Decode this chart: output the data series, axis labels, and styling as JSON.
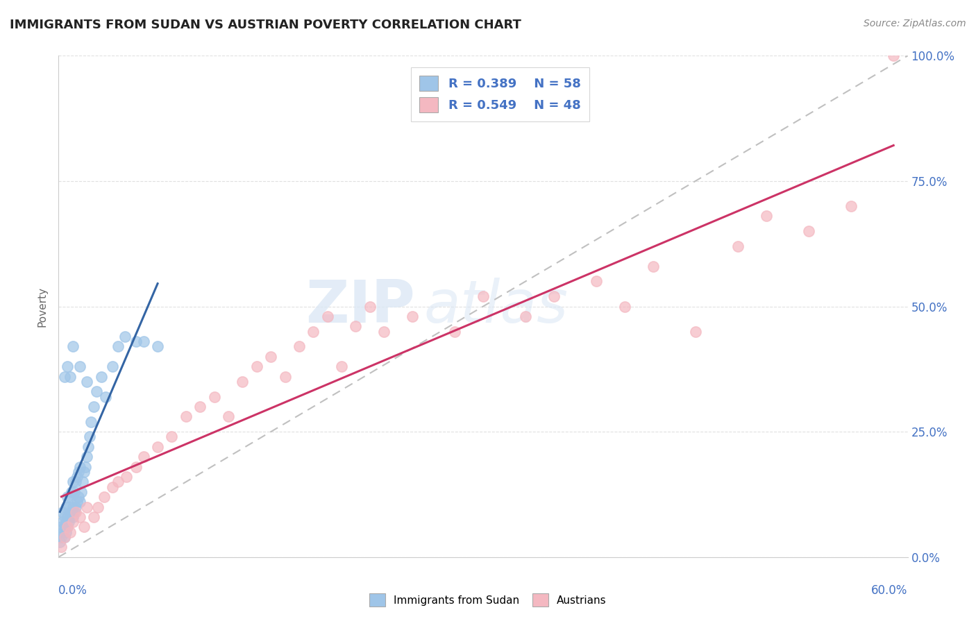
{
  "title": "IMMIGRANTS FROM SUDAN VS AUSTRIAN POVERTY CORRELATION CHART",
  "xlabel_bottom_left": "0.0%",
  "xlabel_bottom_right": "60.0%",
  "ylabel": "Poverty",
  "source": "Source: ZipAtlas.com",
  "xlim": [
    0.0,
    0.6
  ],
  "ylim": [
    0.0,
    1.0
  ],
  "yticks": [
    0.0,
    0.25,
    0.5,
    0.75,
    1.0
  ],
  "ytick_labels": [
    "0.0%",
    "25.0%",
    "50.0%",
    "75.0%",
    "100.0%"
  ],
  "blue_color": "#9fc5e8",
  "pink_color": "#f4b8c1",
  "trend_blue": "#3465a4",
  "trend_pink": "#cc3366",
  "blue_scatter_x": [
    0.001,
    0.002,
    0.002,
    0.003,
    0.003,
    0.003,
    0.004,
    0.004,
    0.004,
    0.005,
    0.005,
    0.005,
    0.006,
    0.006,
    0.006,
    0.007,
    0.007,
    0.008,
    0.008,
    0.009,
    0.009,
    0.01,
    0.01,
    0.01,
    0.011,
    0.011,
    0.012,
    0.012,
    0.013,
    0.013,
    0.014,
    0.014,
    0.015,
    0.015,
    0.016,
    0.017,
    0.018,
    0.019,
    0.02,
    0.021,
    0.022,
    0.023,
    0.025,
    0.027,
    0.03,
    0.033,
    0.038,
    0.042,
    0.047,
    0.055,
    0.06,
    0.07,
    0.02,
    0.015,
    0.01,
    0.008,
    0.006,
    0.004
  ],
  "blue_scatter_y": [
    0.03,
    0.04,
    0.06,
    0.05,
    0.07,
    0.09,
    0.04,
    0.06,
    0.08,
    0.05,
    0.07,
    0.1,
    0.06,
    0.08,
    0.12,
    0.07,
    0.1,
    0.08,
    0.12,
    0.09,
    0.13,
    0.08,
    0.1,
    0.15,
    0.09,
    0.13,
    0.1,
    0.15,
    0.11,
    0.16,
    0.12,
    0.17,
    0.11,
    0.18,
    0.13,
    0.15,
    0.17,
    0.18,
    0.2,
    0.22,
    0.24,
    0.27,
    0.3,
    0.33,
    0.36,
    0.32,
    0.38,
    0.42,
    0.44,
    0.43,
    0.43,
    0.42,
    0.35,
    0.38,
    0.42,
    0.36,
    0.38,
    0.36
  ],
  "pink_scatter_x": [
    0.002,
    0.004,
    0.006,
    0.008,
    0.01,
    0.012,
    0.015,
    0.018,
    0.02,
    0.025,
    0.028,
    0.032,
    0.038,
    0.042,
    0.048,
    0.055,
    0.06,
    0.07,
    0.08,
    0.09,
    0.1,
    0.11,
    0.12,
    0.13,
    0.14,
    0.15,
    0.16,
    0.17,
    0.18,
    0.19,
    0.2,
    0.21,
    0.22,
    0.23,
    0.25,
    0.28,
    0.3,
    0.33,
    0.35,
    0.38,
    0.4,
    0.42,
    0.45,
    0.48,
    0.5,
    0.53,
    0.56,
    0.59
  ],
  "pink_scatter_y": [
    0.02,
    0.04,
    0.06,
    0.05,
    0.07,
    0.09,
    0.08,
    0.06,
    0.1,
    0.08,
    0.1,
    0.12,
    0.14,
    0.15,
    0.16,
    0.18,
    0.2,
    0.22,
    0.24,
    0.28,
    0.3,
    0.32,
    0.28,
    0.35,
    0.38,
    0.4,
    0.36,
    0.42,
    0.45,
    0.48,
    0.38,
    0.46,
    0.5,
    0.45,
    0.48,
    0.45,
    0.52,
    0.48,
    0.52,
    0.55,
    0.5,
    0.58,
    0.45,
    0.62,
    0.68,
    0.65,
    0.7,
    1.0
  ],
  "diag_line_x": [
    0.0,
    0.6
  ],
  "diag_line_y": [
    0.0,
    1.0
  ],
  "grid_color": "#e0e0e0",
  "spine_color": "#cccccc",
  "axis_label_color": "#4472c4",
  "legend_text_color": "#4472c4"
}
